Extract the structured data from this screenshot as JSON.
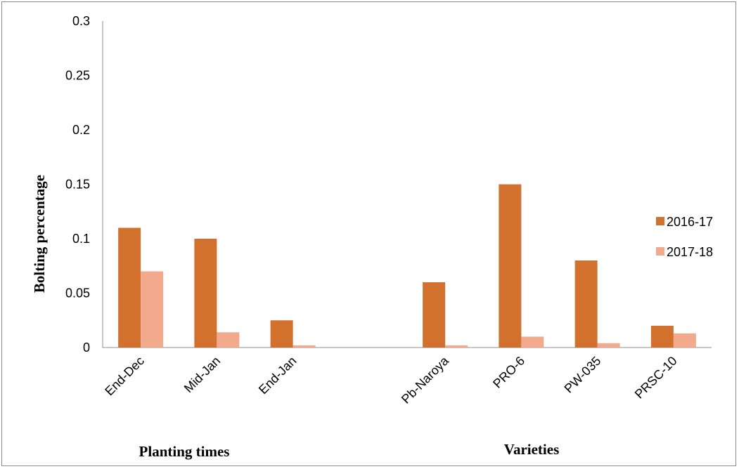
{
  "chart_data": {
    "type": "bar",
    "categories": [
      "End-Dec",
      "Mid-Jan",
      "End-Jan",
      "",
      "Pb-Naroya",
      "PRO-6",
      "PW-035",
      "PRSC-10"
    ],
    "series": [
      {
        "name": "2016-17",
        "color": "#d2702e",
        "values": [
          0.11,
          0.1,
          0.025,
          null,
          0.06,
          0.15,
          0.08,
          0.02
        ]
      },
      {
        "name": "2017-18",
        "color": "#f2a98c",
        "values": [
          0.07,
          0.014,
          0.002,
          null,
          0.002,
          0.01,
          0.004,
          0.013
        ]
      }
    ],
    "yticks": [
      "0",
      "0.05",
      "0.1",
      "0.15",
      "0.2",
      "0.25",
      "0.3"
    ],
    "ylim": [
      0,
      0.3
    ],
    "ylabel": "Bolting percentage",
    "xlabel_groups": [
      "Planting times",
      "Varieties"
    ],
    "legend_position": "right",
    "grid": false
  }
}
